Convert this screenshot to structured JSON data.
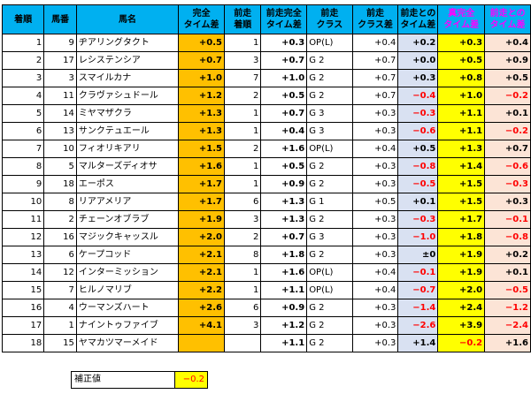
{
  "headers": {
    "rank": "着順",
    "num": "馬番",
    "name": "馬名",
    "complete1": "完全",
    "complete2": "タイム差",
    "prev_rank1": "前走",
    "prev_rank2": "着順",
    "prev_complete1": "前走完全",
    "prev_complete2": "タイム差",
    "prev_class1": "前走",
    "prev_class2": "クラス",
    "prev_classdiff1": "前走",
    "prev_classdiff2": "クラス差",
    "prev_timediff1": "前走との",
    "prev_timediff2": "タイム差",
    "real1": "真完全",
    "real2": "タイム差",
    "real_prev1": "前走との",
    "real_prev2": "タイム差"
  },
  "rows": [
    {
      "rank": "1",
      "num": "9",
      "name": "ヂアリングタクト",
      "complete": "+0.5",
      "prev_rank": "1",
      "prev_complete": "+0.3",
      "prev_class": "OP(L)",
      "prev_classdiff": "+0.4",
      "prev_timediff": "+0.2",
      "real": "+0.3",
      "real_prev": "+0.4"
    },
    {
      "rank": "2",
      "num": "17",
      "name": "レシステンシア",
      "complete": "+0.7",
      "prev_rank": "3",
      "prev_complete": "+0.7",
      "prev_class": "G 2",
      "prev_classdiff": "+0.7",
      "prev_timediff": "+0.0",
      "real": "+0.5",
      "real_prev": "+0.9"
    },
    {
      "rank": "3",
      "num": "3",
      "name": "スマイルカナ",
      "complete": "+1.0",
      "prev_rank": "7",
      "prev_complete": "+1.0",
      "prev_class": "G 2",
      "prev_classdiff": "+0.7",
      "prev_timediff": "+0.3",
      "real": "+0.8",
      "real_prev": "+0.5"
    },
    {
      "rank": "4",
      "num": "11",
      "name": "クラヴァシュドール",
      "complete": "+1.2",
      "prev_rank": "2",
      "prev_complete": "+0.5",
      "prev_class": "G 2",
      "prev_classdiff": "+0.7",
      "prev_timediff": "−0.4",
      "real": "+1.0",
      "real_prev": "−0.2"
    },
    {
      "rank": "5",
      "num": "14",
      "name": "ミヤマザクラ",
      "complete": "+1.3",
      "prev_rank": "1",
      "prev_complete": "+0.7",
      "prev_class": "G 3",
      "prev_classdiff": "+0.3",
      "prev_timediff": "−0.3",
      "real": "+1.1",
      "real_prev": "+0.1"
    },
    {
      "rank": "6",
      "num": "13",
      "name": "サンクテュエール",
      "complete": "+1.3",
      "prev_rank": "1",
      "prev_complete": "+0.4",
      "prev_class": "G 3",
      "prev_classdiff": "+0.3",
      "prev_timediff": "−0.6",
      "real": "+1.1",
      "real_prev": "−0.2"
    },
    {
      "rank": "7",
      "num": "10",
      "name": "フィオリキアリ",
      "complete": "+1.5",
      "prev_rank": "2",
      "prev_complete": "+1.6",
      "prev_class": "OP(L)",
      "prev_classdiff": "+0.4",
      "prev_timediff": "+0.5",
      "real": "+1.3",
      "real_prev": "+0.7"
    },
    {
      "rank": "8",
      "num": "5",
      "name": "マルターズディオサ",
      "complete": "+1.6",
      "prev_rank": "1",
      "prev_complete": "+0.5",
      "prev_class": "G 2",
      "prev_classdiff": "+0.3",
      "prev_timediff": "−0.8",
      "real": "+1.4",
      "real_prev": "−0.6"
    },
    {
      "rank": "9",
      "num": "18",
      "name": "エーポス",
      "complete": "+1.7",
      "prev_rank": "1",
      "prev_complete": "+0.9",
      "prev_class": "G 2",
      "prev_classdiff": "+0.3",
      "prev_timediff": "−0.5",
      "real": "+1.5",
      "real_prev": "−0.3"
    },
    {
      "rank": "10",
      "num": "8",
      "name": "リアアメリア",
      "complete": "+1.7",
      "prev_rank": "6",
      "prev_complete": "+1.3",
      "prev_class": "G 1",
      "prev_classdiff": "+0.5",
      "prev_timediff": "+0.1",
      "real": "+1.5",
      "real_prev": "+0.3"
    },
    {
      "rank": "11",
      "num": "2",
      "name": "チェーンオブラブ",
      "complete": "+1.9",
      "prev_rank": "3",
      "prev_complete": "+1.3",
      "prev_class": "G 2",
      "prev_classdiff": "+0.3",
      "prev_timediff": "−0.3",
      "real": "+1.7",
      "real_prev": "−0.1"
    },
    {
      "rank": "12",
      "num": "16",
      "name": "マジックキャッスル",
      "complete": "+2.0",
      "prev_rank": "2",
      "prev_complete": "+0.7",
      "prev_class": "G 3",
      "prev_classdiff": "+0.3",
      "prev_timediff": "−1.0",
      "real": "+1.8",
      "real_prev": "−0.8"
    },
    {
      "rank": "13",
      "num": "6",
      "name": "ケープコッド",
      "complete": "+2.1",
      "prev_rank": "8",
      "prev_complete": "+1.8",
      "prev_class": "G 2",
      "prev_classdiff": "+0.3",
      "prev_timediff": "±0",
      "real": "+1.9",
      "real_prev": "+0.2"
    },
    {
      "rank": "14",
      "num": "12",
      "name": "インターミッション",
      "complete": "+2.1",
      "prev_rank": "1",
      "prev_complete": "+1.6",
      "prev_class": "OP(L)",
      "prev_classdiff": "+0.4",
      "prev_timediff": "−0.1",
      "real": "+1.9",
      "real_prev": "+0.1"
    },
    {
      "rank": "15",
      "num": "7",
      "name": "ヒルノマリブ",
      "complete": "+2.2",
      "prev_rank": "1",
      "prev_complete": "+1.1",
      "prev_class": "OP(L)",
      "prev_classdiff": "+0.4",
      "prev_timediff": "−0.7",
      "real": "+2.0",
      "real_prev": "−0.5"
    },
    {
      "rank": "16",
      "num": "4",
      "name": "ウーマンズハート",
      "complete": "+2.6",
      "prev_rank": "6",
      "prev_complete": "+0.9",
      "prev_class": "G 2",
      "prev_classdiff": "+0.3",
      "prev_timediff": "−1.4",
      "real": "+2.4",
      "real_prev": "−1.2"
    },
    {
      "rank": "17",
      "num": "1",
      "name": "ナイントゥファイブ",
      "complete": "+4.1",
      "prev_rank": "3",
      "prev_complete": "+1.2",
      "prev_class": "G 2",
      "prev_classdiff": "+0.3",
      "prev_timediff": "−2.6",
      "real": "+3.9",
      "real_prev": "−2.4"
    },
    {
      "rank": "18",
      "num": "15",
      "name": "ヤマカツマーメイド",
      "complete": "",
      "prev_rank": "",
      "prev_complete": "+1.1",
      "prev_class": "G 2",
      "prev_classdiff": "+0.3",
      "prev_timediff": "+1.4",
      "real": "−0.2",
      "real_prev": "+1.6"
    }
  ],
  "correction": {
    "label": "補正値",
    "value": "−0.2"
  },
  "colors": {
    "header": "#00b0f0",
    "complete": "#ffc000",
    "timediff": "#d9e1f2",
    "real": "#ffff00",
    "real_prev": "#fce4d6",
    "negative": "#ff0000",
    "pink_header": "#ff00ff"
  }
}
